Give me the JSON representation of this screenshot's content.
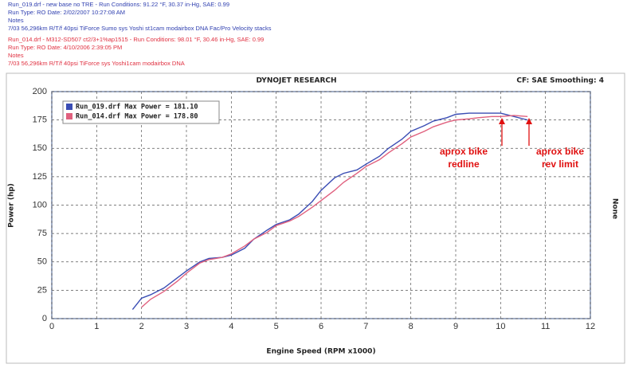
{
  "header": {
    "blue_lines": [
      "Run_019.drf - new base no TRE - Run Conditions: 91.22 °F, 30.37 in-Hg, SAE: 0.99",
      "Run Type: RO  Date: 2/02/2007 10:27:08 AM",
      "Notes",
      "7/03 56,296km R/T/f 40psi TiForce Sumo sys Yoshi st1cam modairbox DNA Fac/Pro Velocity stacks"
    ],
    "red_lines": [
      "Run_014.drf - M312-SD507 ct2/3+1%ap1515 - Run Conditions: 98.01 °F, 30.46 in-Hg, SAE: 0.99",
      "Run Type: RO  Date: 4/10/2006 2:39:05 PM",
      "Notes",
      "7/03 56,296km R/T/f 40psi TiForce sys Yoshi1cam modairbox DNA"
    ]
  },
  "chart_data": {
    "type": "line",
    "title": "DYNOJET RESEARCH",
    "subtitle": "CF: SAE  Smoothing: 4",
    "xlabel": "Engine Speed (RPM x1000)",
    "ylabel": "Power (hp)",
    "y2label": "None",
    "xlim": [
      0,
      12
    ],
    "xticks": [
      0,
      1,
      2,
      3,
      4,
      5,
      6,
      7,
      8,
      9,
      10,
      11,
      12
    ],
    "ylim": [
      0,
      200
    ],
    "yticks": [
      0,
      25,
      50,
      75,
      100,
      125,
      150,
      175,
      200
    ],
    "grid": true,
    "series": [
      {
        "name": "Run_019.drf Max Power = 181.10",
        "color": "#3a4db4",
        "x": [
          1.8,
          2.0,
          2.2,
          2.5,
          2.8,
          3.0,
          3.3,
          3.5,
          3.8,
          4.0,
          4.3,
          4.5,
          4.8,
          5.0,
          5.3,
          5.5,
          5.8,
          6.0,
          6.3,
          6.5,
          6.8,
          7.0,
          7.3,
          7.5,
          7.8,
          8.0,
          8.3,
          8.5,
          8.8,
          9.0,
          9.3,
          9.5,
          9.8,
          10.0,
          10.3,
          10.6
        ],
        "values": [
          8,
          18,
          21,
          27,
          36,
          42,
          50,
          53,
          54,
          56,
          62,
          70,
          78,
          83,
          87,
          92,
          103,
          113,
          124,
          128,
          131,
          136,
          143,
          150,
          158,
          165,
          170,
          174,
          177,
          180,
          181,
          181,
          181,
          181,
          178,
          175
        ]
      },
      {
        "name": "Run_014.drf Max Power = 178.80",
        "color": "#e0607e",
        "x": [
          2.0,
          2.2,
          2.5,
          2.8,
          3.0,
          3.3,
          3.5,
          3.8,
          4.0,
          4.3,
          4.5,
          4.8,
          5.0,
          5.3,
          5.5,
          5.8,
          6.0,
          6.3,
          6.5,
          6.8,
          7.0,
          7.3,
          7.5,
          7.8,
          8.0,
          8.3,
          8.5,
          8.8,
          9.0,
          9.3,
          9.5,
          9.8,
          10.0,
          10.3,
          10.6
        ],
        "values": [
          10,
          17,
          24,
          33,
          40,
          49,
          52,
          54,
          57,
          64,
          70,
          76,
          82,
          86,
          90,
          98,
          104,
          113,
          120,
          128,
          134,
          140,
          146,
          154,
          160,
          165,
          169,
          173,
          175,
          176,
          177,
          178,
          178,
          179,
          178
        ]
      }
    ],
    "annotations": [
      {
        "lines": [
          "aprox bike",
          "redline"
        ]
      },
      {
        "lines": [
          "aprox bike",
          "rev limit"
        ]
      }
    ]
  }
}
